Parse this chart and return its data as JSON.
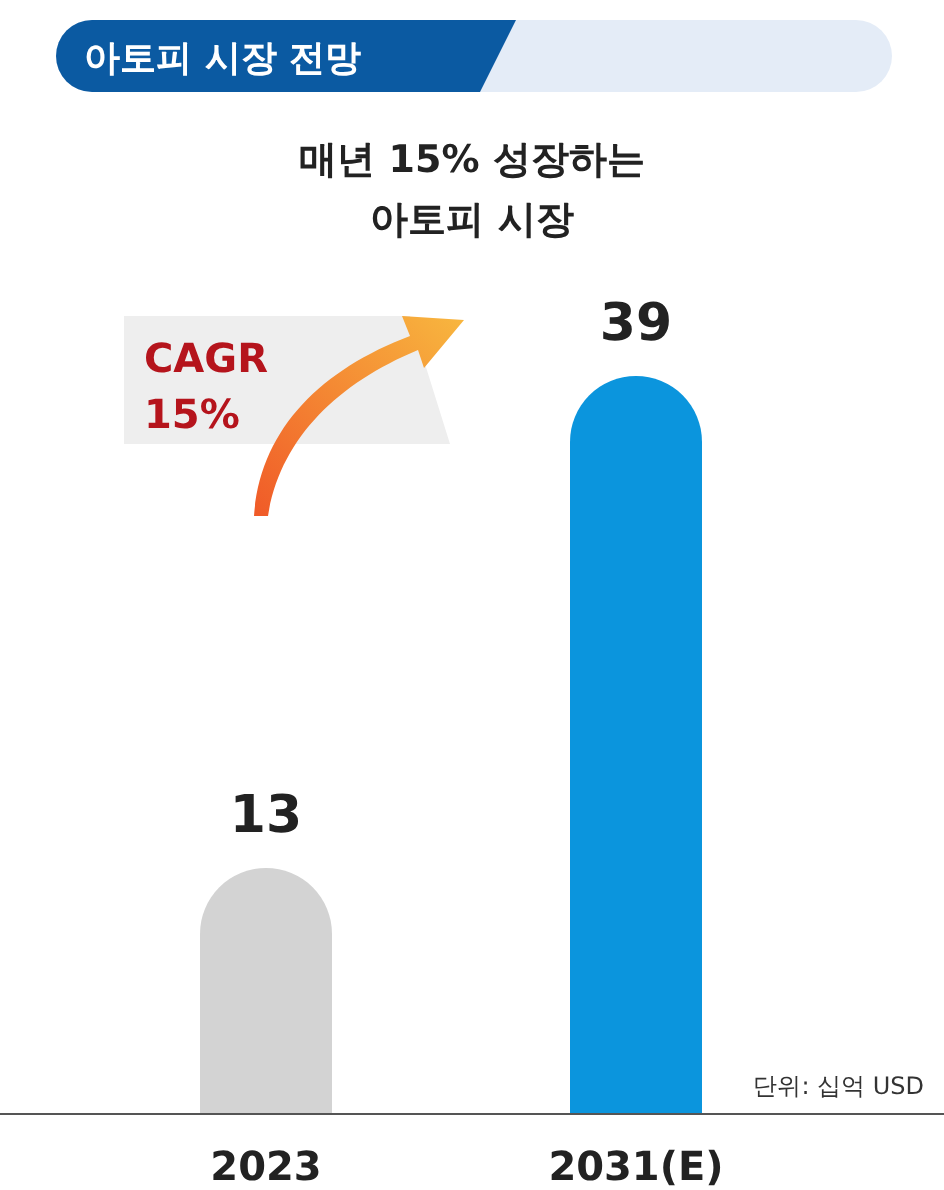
{
  "chart_data": {
    "type": "bar",
    "title": "아토피 시장 전망",
    "subtitle": "매년 15% 성장하는\n아토피 시장",
    "categories": [
      "2023",
      "2031(E)"
    ],
    "values": [
      13,
      39
    ],
    "colors": [
      "#d3d3d3",
      "#0b95dd"
    ],
    "data_labels": true,
    "annotations": [
      "CAGR\n15%",
      "단위: 십억 USD"
    ]
  }
}
